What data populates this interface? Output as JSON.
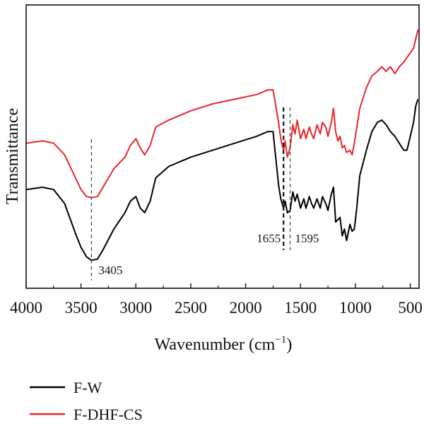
{
  "chart_data": {
    "type": "line",
    "xlabel": "Wavenumber (cm",
    "xlabel_sup": "−1",
    "xlabel_end": ")",
    "ylabel": "Transmittance",
    "xlim": [
      4000,
      420
    ],
    "ylim": [
      0,
      100
    ],
    "xticks": [
      4000,
      3500,
      3000,
      2500,
      2000,
      1500,
      1000,
      500
    ],
    "x_reversed": true,
    "y_tick_labels": false,
    "legend_position": "bottom",
    "annotations": [
      {
        "x": 3405,
        "label": "3405"
      },
      {
        "x": 1655,
        "label": "1655"
      },
      {
        "x": 1595,
        "label": "1595"
      }
    ],
    "series": [
      {
        "name": "F-W",
        "color": "#000000",
        "x": [
          4000,
          3850,
          3750,
          3650,
          3550,
          3500,
          3450,
          3405,
          3350,
          3300,
          3200,
          3100,
          3050,
          3000,
          2960,
          2920,
          2870,
          2820,
          2700,
          2500,
          2300,
          2100,
          1900,
          1800,
          1750,
          1700,
          1680,
          1655,
          1640,
          1620,
          1595,
          1570,
          1550,
          1530,
          1500,
          1470,
          1450,
          1420,
          1400,
          1380,
          1350,
          1320,
          1300,
          1270,
          1250,
          1220,
          1200,
          1180,
          1160,
          1140,
          1120,
          1100,
          1080,
          1050,
          1030,
          1010,
          990,
          960,
          900,
          850,
          800,
          760,
          720,
          680,
          640,
          600,
          560,
          530,
          500,
          470,
          450,
          430
        ],
        "y": [
          31,
          32,
          31,
          25,
          12,
          6,
          2,
          0.5,
          1,
          5,
          14,
          21,
          26,
          28,
          23,
          21,
          26,
          36,
          41,
          45,
          48,
          51,
          54,
          56,
          56,
          33,
          27,
          23,
          26,
          21,
          22,
          30,
          26,
          29,
          23,
          27,
          23,
          28,
          25,
          23,
          27,
          23,
          28,
          25,
          22,
          29,
          32,
          17,
          18,
          19,
          11,
          14,
          9,
          16,
          13,
          14,
          22,
          37,
          48,
          56,
          60,
          61,
          59,
          56,
          54,
          51,
          48,
          48,
          54,
          60,
          67,
          70
        ]
      },
      {
        "name": "F-DHF-CS",
        "color": "#e8262c",
        "x": [
          4000,
          3850,
          3750,
          3650,
          3550,
          3500,
          3450,
          3405,
          3350,
          3300,
          3200,
          3100,
          3050,
          3000,
          2960,
          2920,
          2870,
          2820,
          2700,
          2500,
          2300,
          2100,
          1900,
          1800,
          1750,
          1700,
          1680,
          1655,
          1640,
          1620,
          1595,
          1570,
          1550,
          1530,
          1500,
          1470,
          1450,
          1420,
          1400,
          1380,
          1350,
          1320,
          1300,
          1270,
          1250,
          1220,
          1200,
          1180,
          1160,
          1140,
          1120,
          1100,
          1080,
          1050,
          1030,
          1010,
          990,
          960,
          900,
          850,
          800,
          760,
          720,
          680,
          640,
          600,
          560,
          530,
          500,
          470,
          450,
          430
        ],
        "y": [
          51,
          52,
          51,
          46,
          36,
          31,
          28,
          27.5,
          28,
          32,
          40,
          45,
          50,
          53,
          49,
          46,
          50,
          58,
          61,
          65,
          68,
          70,
          72,
          74,
          74,
          60,
          53,
          48,
          52,
          45,
          49,
          59,
          55,
          61,
          53,
          57,
          53,
          58,
          55,
          53,
          59,
          55,
          60,
          58,
          54,
          60,
          66,
          56,
          52,
          54,
          49,
          50,
          47,
          48,
          46,
          51,
          57,
          66,
          75,
          80,
          82,
          84,
          82,
          84,
          81,
          84,
          86,
          88,
          90,
          92,
          96,
          100
        ]
      }
    ]
  }
}
